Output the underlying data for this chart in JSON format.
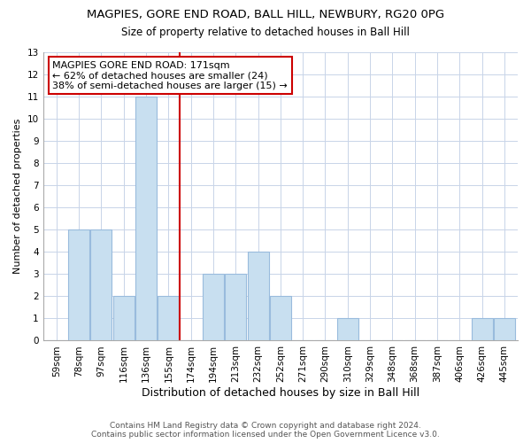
{
  "title": "MAGPIES, GORE END ROAD, BALL HILL, NEWBURY, RG20 0PG",
  "subtitle": "Size of property relative to detached houses in Ball Hill",
  "xlabel": "Distribution of detached houses by size in Ball Hill",
  "ylabel": "Number of detached properties",
  "bins": [
    "59sqm",
    "78sqm",
    "97sqm",
    "116sqm",
    "136sqm",
    "155sqm",
    "174sqm",
    "194sqm",
    "213sqm",
    "232sqm",
    "252sqm",
    "271sqm",
    "290sqm",
    "310sqm",
    "329sqm",
    "348sqm",
    "368sqm",
    "387sqm",
    "406sqm",
    "426sqm",
    "445sqm"
  ],
  "bar_heights": [
    0,
    5,
    5,
    2,
    11,
    2,
    0,
    3,
    3,
    4,
    2,
    0,
    0,
    1,
    0,
    0,
    0,
    0,
    0,
    1,
    1
  ],
  "bar_color": "#c8dff0",
  "bar_edge_color": "#99bbdd",
  "property_line_color": "#cc0000",
  "property_line_bin": "174sqm",
  "annotation_line1": "MAGPIES GORE END ROAD: 171sqm",
  "annotation_line2": "← 62% of detached houses are smaller (24)",
  "annotation_line3": "38% of semi-detached houses are larger (15) →",
  "annotation_box_color": "#ffffff",
  "annotation_box_edge_color": "#cc0000",
  "ylim": [
    0,
    13
  ],
  "yticks": [
    0,
    1,
    2,
    3,
    4,
    5,
    6,
    7,
    8,
    9,
    10,
    11,
    12,
    13
  ],
  "footer_line1": "Contains HM Land Registry data © Crown copyright and database right 2024.",
  "footer_line2": "Contains public sector information licensed under the Open Government Licence v3.0.",
  "bg_color": "#ffffff",
  "grid_color": "#c8d4e8",
  "title_fontsize": 9.5,
  "subtitle_fontsize": 8.5,
  "xlabel_fontsize": 9,
  "ylabel_fontsize": 8,
  "tick_fontsize": 7.5,
  "footer_fontsize": 6.5,
  "annotation_fontsize": 8
}
